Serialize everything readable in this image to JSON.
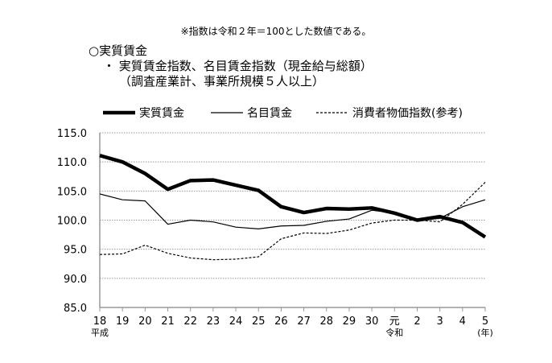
{
  "note": "※指数は令和２年＝100とした数値である。",
  "heading": "○実質賃金",
  "subheading1": "・ 実質賃金指数、名目賃金指数（現金給与総額）",
  "subheading2": "（調査産業計、事業所規模５人以上）",
  "chart_data": {
    "type": "line",
    "title": "",
    "xlabel": "",
    "ylabel": "",
    "ylim": [
      85,
      115
    ],
    "yticks": [
      "85.0",
      "90.0",
      "95.0",
      "100.0",
      "105.0",
      "110.0",
      "115.0"
    ],
    "categories": [
      "18",
      "19",
      "20",
      "21",
      "22",
      "23",
      "24",
      "25",
      "26",
      "27",
      "28",
      "29",
      "30",
      "元",
      "2",
      "3",
      "4",
      "5"
    ],
    "era_labels": {
      "first": "平成",
      "reiwa": "令和",
      "unit": "(年)"
    },
    "grid": true,
    "legend_placement": "top",
    "series": [
      {
        "name": "実質賃金",
        "style": "thick",
        "values": [
          111.1,
          110.0,
          108.0,
          105.3,
          106.8,
          106.9,
          106.0,
          105.1,
          102.3,
          101.3,
          102.0,
          101.9,
          102.1,
          101.2,
          100.0,
          100.6,
          99.6,
          97.1
        ]
      },
      {
        "name": "名目賃金",
        "style": "thin",
        "values": [
          104.5,
          103.5,
          103.3,
          99.3,
          100.0,
          99.7,
          98.8,
          98.5,
          99.0,
          99.1,
          99.8,
          100.2,
          101.7,
          101.2,
          100.0,
          100.3,
          102.3,
          103.5
        ]
      },
      {
        "name": "消費者物価指数(参考)",
        "style": "dashed",
        "values": [
          94.1,
          94.2,
          95.7,
          94.3,
          93.5,
          93.2,
          93.3,
          93.7,
          96.8,
          97.8,
          97.7,
          98.3,
          99.5,
          100.0,
          100.0,
          99.7,
          102.7,
          106.5
        ]
      }
    ]
  }
}
